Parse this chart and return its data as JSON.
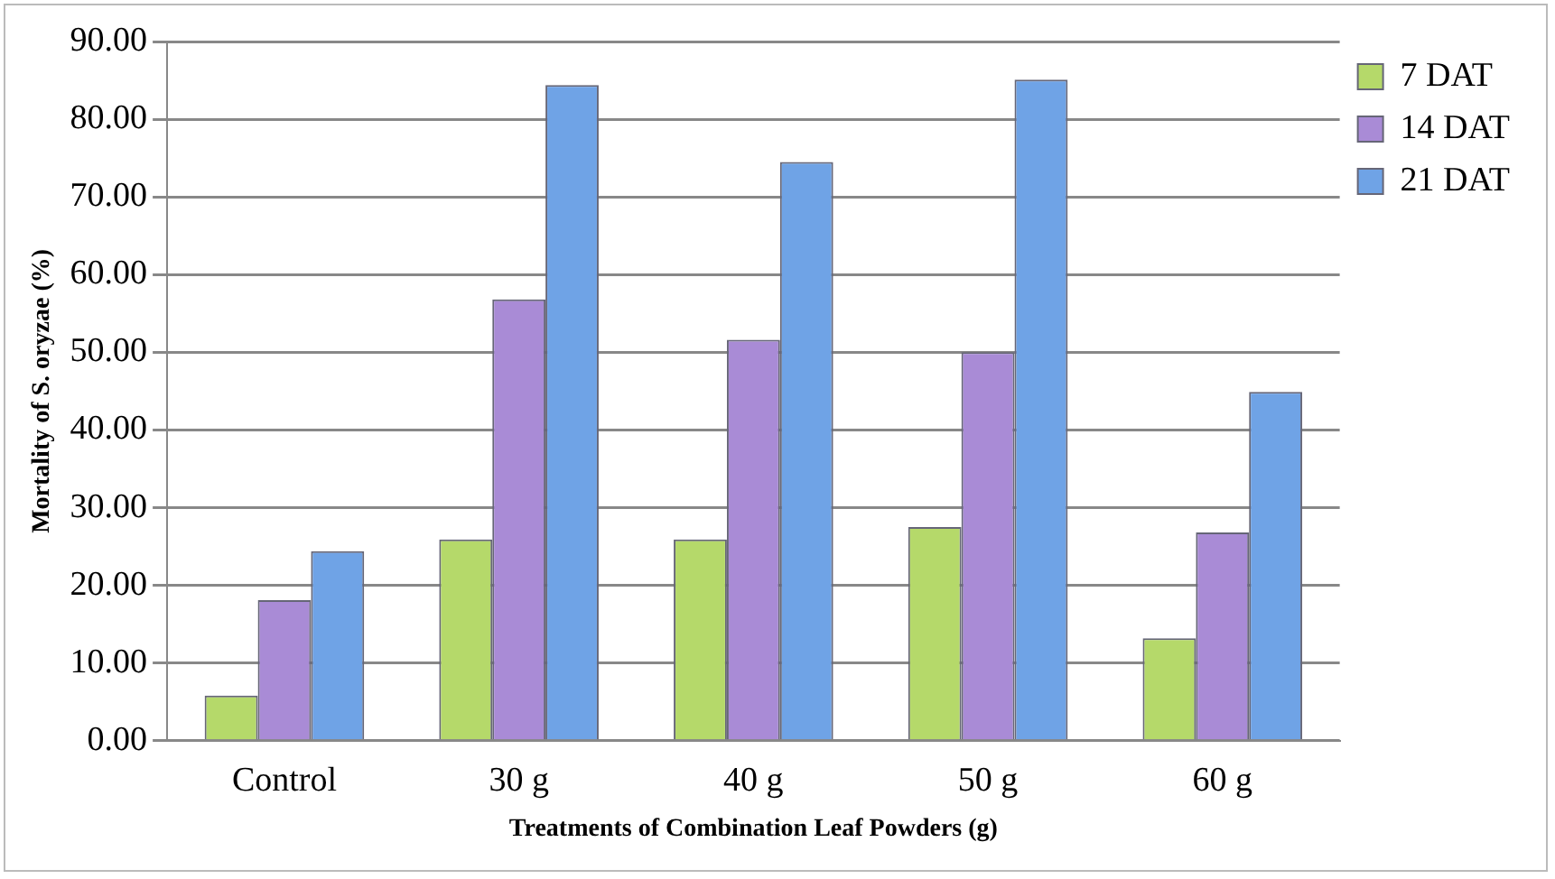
{
  "chart_data": {
    "type": "bar",
    "xlabel": "Treatments of Combination Leaf Powders (g)",
    "ylabel": "Mortality of S. oryzae (%)",
    "categories": [
      "Control",
      "30 g",
      "40 g",
      "50 g",
      "60 g"
    ],
    "series": [
      {
        "name": "7 DAT",
        "color": "#b5d96a",
        "values": [
          5.8,
          25.9,
          25.9,
          27.5,
          13.2
        ]
      },
      {
        "name": "14 DAT",
        "color": "#a98bd6",
        "values": [
          18.1,
          56.8,
          51.6,
          50.0,
          26.8
        ]
      },
      {
        "name": "21 DAT",
        "color": "#6fa3e6",
        "values": [
          24.4,
          84.4,
          74.5,
          85.1,
          44.9
        ]
      }
    ],
    "ylim": [
      0,
      90
    ],
    "yticks": [
      {
        "value": 0,
        "label": "0.00"
      },
      {
        "value": 10,
        "label": "10.00"
      },
      {
        "value": 20,
        "label": "20.00"
      },
      {
        "value": 30,
        "label": "30.00"
      },
      {
        "value": 40,
        "label": "40.00"
      },
      {
        "value": 50,
        "label": "50.00"
      },
      {
        "value": 60,
        "label": "60.00"
      },
      {
        "value": 70,
        "label": "70.00"
      },
      {
        "value": 80,
        "label": "80.00"
      },
      {
        "value": 90,
        "label": "90.00"
      }
    ],
    "grid": "y",
    "legend": "right"
  }
}
